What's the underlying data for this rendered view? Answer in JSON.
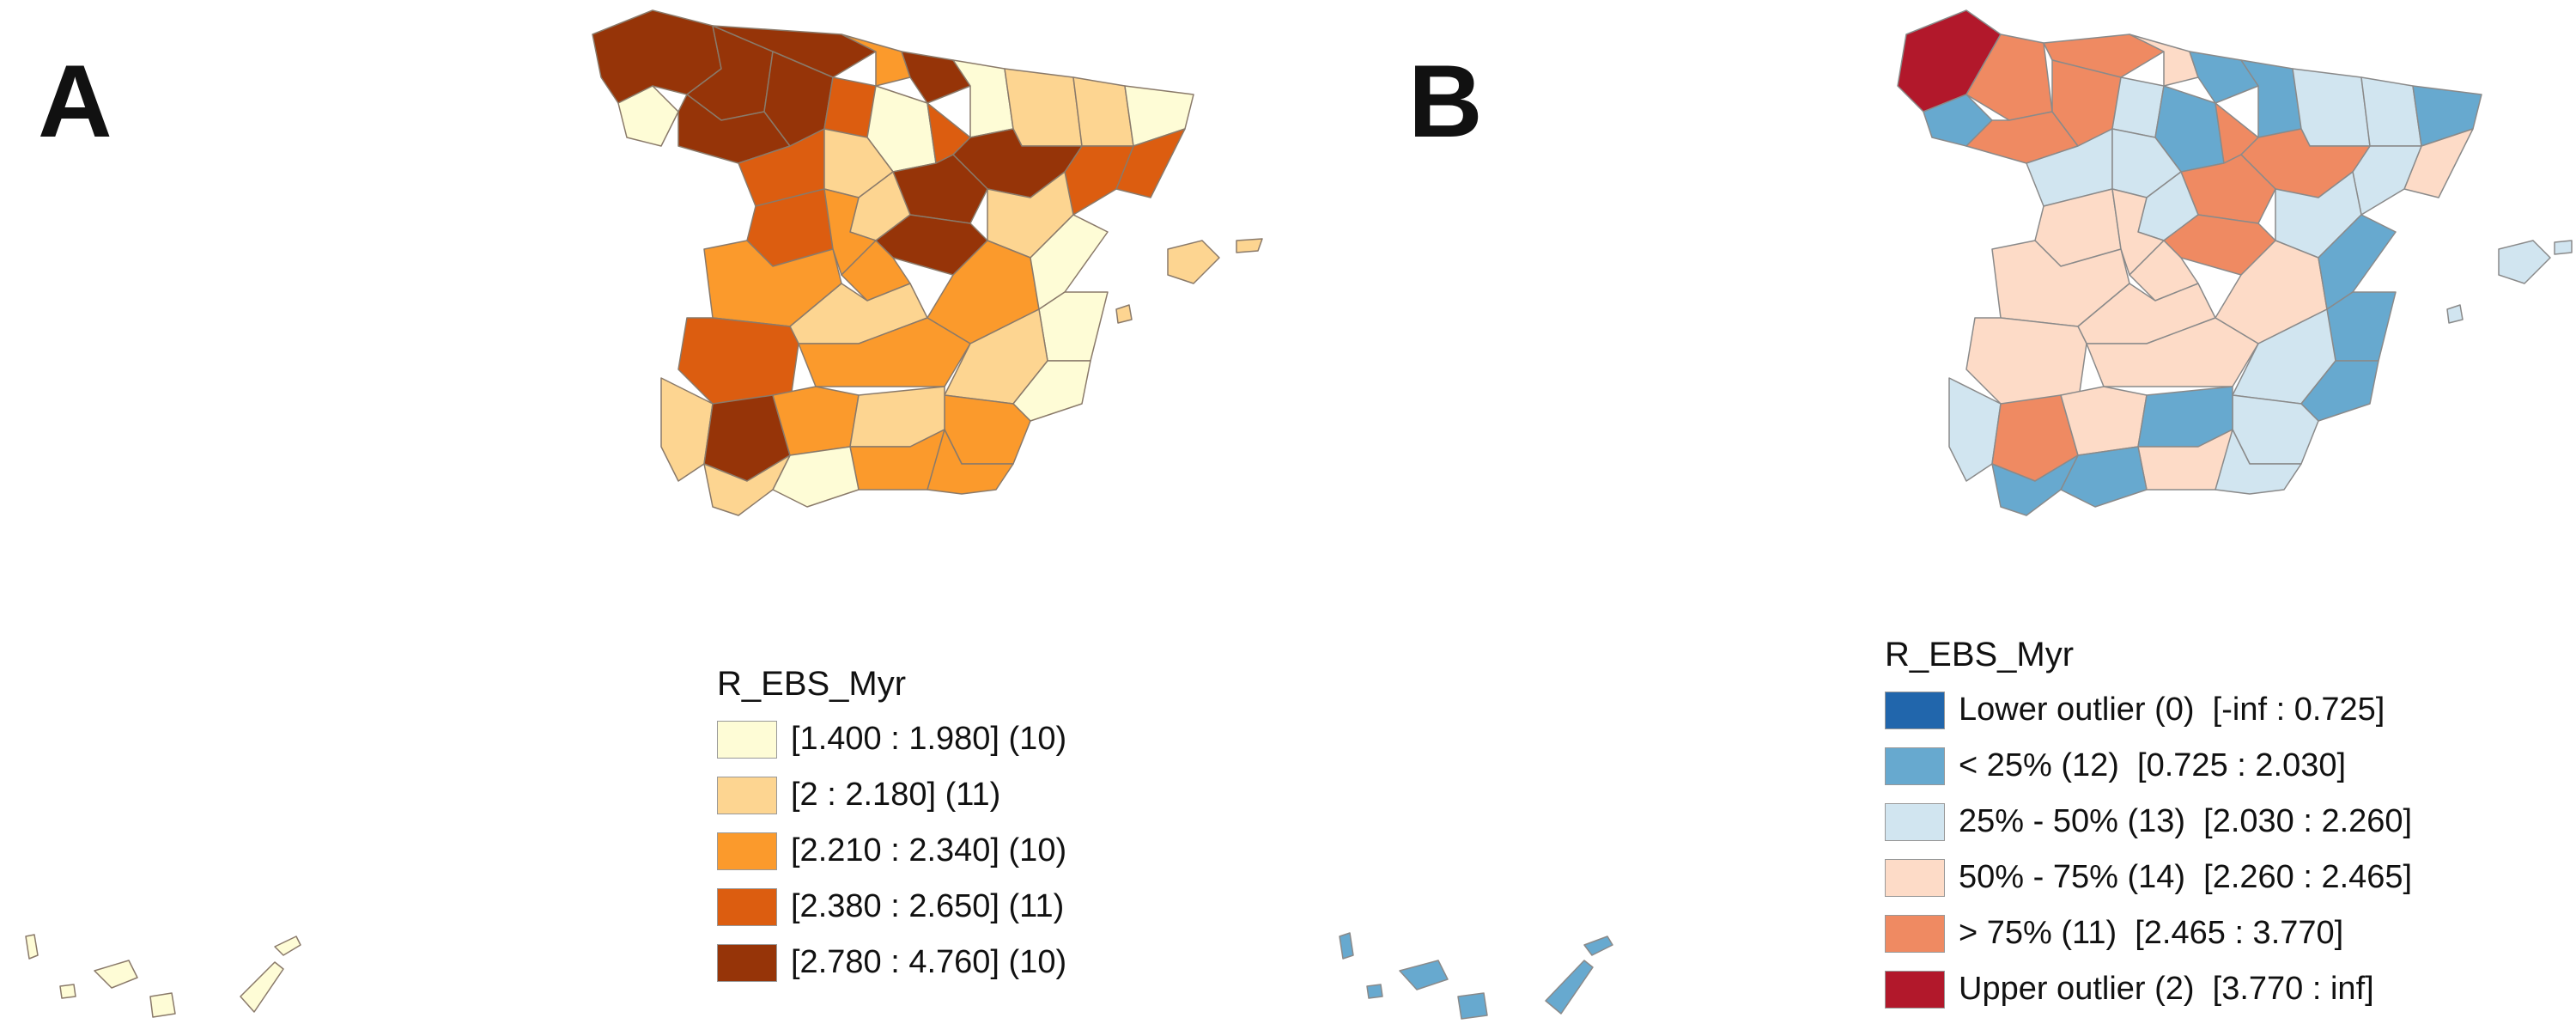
{
  "panels": [
    {
      "letter": "A",
      "legend": {
        "title": "R_EBS_Myr",
        "items": [
          {
            "label": "[1.400 : 1.980] (10)",
            "color": "#fefcd6"
          },
          {
            "label": "[2 : 2.180] (11)",
            "color": "#fdd591"
          },
          {
            "label": "[2.210 : 2.340] (10)",
            "color": "#fb9a2c"
          },
          {
            "label": "[2.380 : 2.650] (11)",
            "color": "#dc5d10"
          },
          {
            "label": "[2.780 : 4.760] (10)",
            "color": "#963408"
          }
        ]
      }
    },
    {
      "letter": "B",
      "legend": {
        "title": "R_EBS_Myr",
        "items": [
          {
            "label": "Lower outlier (0)  [-inf : 0.725]",
            "color": "#2166ac"
          },
          {
            "label": "< 25% (12)  [0.725 : 2.030]",
            "color": "#67a9cf"
          },
          {
            "label": "25% - 50% (13)  [2.030 : 2.260]",
            "color": "#d1e5f0"
          },
          {
            "label": "50% - 75% (14)  [2.260 : 2.465]",
            "color": "#fddbc7"
          },
          {
            "label": "> 75% (11)  [2.465 : 3.770]",
            "color": "#ef8a62"
          },
          {
            "label": "Upper outlier (2)  [3.770 : inf]",
            "color": "#b2182b"
          }
        ]
      }
    }
  ]
}
